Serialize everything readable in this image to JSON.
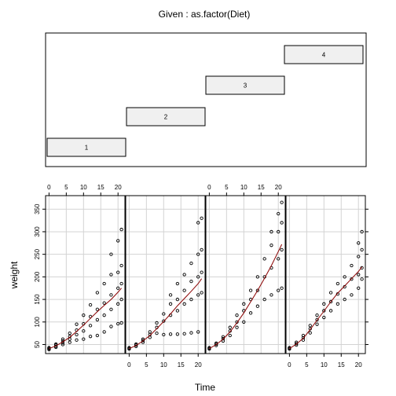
{
  "chart_data": {
    "type": "scatter",
    "subtype": "coplot",
    "given_title": "Given : as.factor(Diet)",
    "given_levels": [
      "1",
      "2",
      "3",
      "4"
    ],
    "xlabel": "Time",
    "ylabel": "weight",
    "xlim": [
      -1,
      22
    ],
    "ylim": [
      30,
      380
    ],
    "x_ticks": [
      0,
      5,
      10,
      15,
      20
    ],
    "y_ticks": [
      50,
      100,
      150,
      200,
      250,
      300,
      350
    ],
    "grid": true,
    "smoother": true,
    "smoother_color": "#8b0000",
    "point_color": "#000000",
    "x_times": [
      0,
      2,
      4,
      6,
      8,
      10,
      12,
      14,
      16,
      18,
      20,
      21
    ],
    "panels": [
      {
        "diet": "1",
        "smooth": [
          [
            0,
            41
          ],
          [
            2,
            47
          ],
          [
            4,
            56
          ],
          [
            6,
            66
          ],
          [
            8,
            79
          ],
          [
            10,
            93
          ],
          [
            12,
            108
          ],
          [
            14,
            123
          ],
          [
            16,
            137
          ],
          [
            18,
            150
          ],
          [
            20,
            166
          ],
          [
            21,
            175
          ]
        ],
        "points": [
          [
            0,
            39
          ],
          [
            0,
            41
          ],
          [
            0,
            42
          ],
          [
            0,
            43
          ],
          [
            2,
            44
          ],
          [
            2,
            46
          ],
          [
            2,
            49
          ],
          [
            2,
            51
          ],
          [
            4,
            50
          ],
          [
            4,
            54
          ],
          [
            4,
            58
          ],
          [
            4,
            62
          ],
          [
            6,
            55
          ],
          [
            6,
            62
          ],
          [
            6,
            68
          ],
          [
            6,
            75
          ],
          [
            8,
            60
          ],
          [
            8,
            72
          ],
          [
            8,
            82
          ],
          [
            8,
            95
          ],
          [
            10,
            62
          ],
          [
            10,
            80
          ],
          [
            10,
            96
          ],
          [
            10,
            115
          ],
          [
            12,
            68
          ],
          [
            12,
            92
          ],
          [
            12,
            112
          ],
          [
            12,
            138
          ],
          [
            14,
            70
          ],
          [
            14,
            105
          ],
          [
            14,
            128
          ],
          [
            14,
            165
          ],
          [
            16,
            78
          ],
          [
            16,
            115
          ],
          [
            16,
            142
          ],
          [
            16,
            185
          ],
          [
            18,
            90
          ],
          [
            18,
            128
          ],
          [
            18,
            160
          ],
          [
            18,
            205
          ],
          [
            18,
            250
          ],
          [
            20,
            96
          ],
          [
            20,
            140
          ],
          [
            20,
            175
          ],
          [
            20,
            210
          ],
          [
            20,
            280
          ],
          [
            21,
            98
          ],
          [
            21,
            150
          ],
          [
            21,
            185
          ],
          [
            21,
            225
          ],
          [
            21,
            305
          ]
        ]
      },
      {
        "diet": "2",
        "smooth": [
          [
            0,
            41
          ],
          [
            2,
            48
          ],
          [
            4,
            58
          ],
          [
            6,
            70
          ],
          [
            8,
            85
          ],
          [
            10,
            101
          ],
          [
            12,
            118
          ],
          [
            14,
            136
          ],
          [
            16,
            152
          ],
          [
            18,
            168
          ],
          [
            20,
            185
          ],
          [
            21,
            196
          ]
        ],
        "points": [
          [
            0,
            40
          ],
          [
            0,
            42
          ],
          [
            0,
            43
          ],
          [
            2,
            46
          ],
          [
            2,
            49
          ],
          [
            2,
            51
          ],
          [
            4,
            55
          ],
          [
            4,
            59
          ],
          [
            4,
            62
          ],
          [
            6,
            66
          ],
          [
            6,
            72
          ],
          [
            6,
            78
          ],
          [
            8,
            75
          ],
          [
            8,
            88
          ],
          [
            8,
            98
          ],
          [
            10,
            72
          ],
          [
            10,
            102
          ],
          [
            10,
            118
          ],
          [
            12,
            73
          ],
          [
            12,
            115
          ],
          [
            12,
            140
          ],
          [
            12,
            160
          ],
          [
            14,
            73
          ],
          [
            14,
            125
          ],
          [
            14,
            150
          ],
          [
            14,
            185
          ],
          [
            16,
            74
          ],
          [
            16,
            140
          ],
          [
            16,
            170
          ],
          [
            16,
            205
          ],
          [
            18,
            76
          ],
          [
            18,
            150
          ],
          [
            18,
            190
          ],
          [
            18,
            230
          ],
          [
            20,
            78
          ],
          [
            20,
            160
          ],
          [
            20,
            200
          ],
          [
            20,
            250
          ],
          [
            20,
            320
          ],
          [
            21,
            165
          ],
          [
            21,
            210
          ],
          [
            21,
            260
          ],
          [
            21,
            330
          ]
        ]
      },
      {
        "diet": "3",
        "smooth": [
          [
            0,
            41
          ],
          [
            2,
            50
          ],
          [
            4,
            62
          ],
          [
            6,
            78
          ],
          [
            8,
            98
          ],
          [
            10,
            120
          ],
          [
            12,
            145
          ],
          [
            14,
            170
          ],
          [
            16,
            197
          ],
          [
            18,
            225
          ],
          [
            20,
            256
          ],
          [
            21,
            272
          ]
        ],
        "points": [
          [
            0,
            40
          ],
          [
            0,
            42
          ],
          [
            0,
            43
          ],
          [
            2,
            48
          ],
          [
            2,
            51
          ],
          [
            2,
            53
          ],
          [
            4,
            58
          ],
          [
            4,
            63
          ],
          [
            4,
            67
          ],
          [
            6,
            70
          ],
          [
            6,
            80
          ],
          [
            6,
            88
          ],
          [
            8,
            88
          ],
          [
            8,
            100
          ],
          [
            8,
            115
          ],
          [
            10,
            100
          ],
          [
            10,
            125
          ],
          [
            10,
            140
          ],
          [
            12,
            120
          ],
          [
            12,
            150
          ],
          [
            12,
            170
          ],
          [
            14,
            135
          ],
          [
            14,
            170
          ],
          [
            14,
            200
          ],
          [
            16,
            150
          ],
          [
            16,
            200
          ],
          [
            16,
            240
          ],
          [
            18,
            160
          ],
          [
            18,
            220
          ],
          [
            18,
            270
          ],
          [
            18,
            300
          ],
          [
            20,
            170
          ],
          [
            20,
            240
          ],
          [
            20,
            300
          ],
          [
            20,
            340
          ],
          [
            21,
            175
          ],
          [
            21,
            260
          ],
          [
            21,
            320
          ],
          [
            21,
            365
          ]
        ]
      },
      {
        "diet": "4",
        "smooth": [
          [
            0,
            41
          ],
          [
            2,
            51
          ],
          [
            4,
            64
          ],
          [
            6,
            83
          ],
          [
            8,
            104
          ],
          [
            10,
            124
          ],
          [
            12,
            145
          ],
          [
            14,
            164
          ],
          [
            16,
            180
          ],
          [
            18,
            196
          ],
          [
            20,
            212
          ],
          [
            21,
            222
          ]
        ],
        "points": [
          [
            0,
            40
          ],
          [
            0,
            42
          ],
          [
            0,
            43
          ],
          [
            2,
            49
          ],
          [
            2,
            52
          ],
          [
            2,
            55
          ],
          [
            4,
            60
          ],
          [
            4,
            65
          ],
          [
            4,
            70
          ],
          [
            6,
            76
          ],
          [
            6,
            85
          ],
          [
            6,
            92
          ],
          [
            8,
            95
          ],
          [
            8,
            105
          ],
          [
            8,
            115
          ],
          [
            10,
            110
          ],
          [
            10,
            125
          ],
          [
            10,
            140
          ],
          [
            12,
            125
          ],
          [
            12,
            145
          ],
          [
            12,
            165
          ],
          [
            14,
            140
          ],
          [
            14,
            162
          ],
          [
            14,
            185
          ],
          [
            16,
            150
          ],
          [
            16,
            178
          ],
          [
            16,
            200
          ],
          [
            18,
            160
          ],
          [
            18,
            195
          ],
          [
            18,
            225
          ],
          [
            20,
            175
          ],
          [
            20,
            205
          ],
          [
            20,
            245
          ],
          [
            20,
            275
          ],
          [
            21,
            195
          ],
          [
            21,
            220
          ],
          [
            21,
            260
          ],
          [
            21,
            300
          ]
        ]
      }
    ]
  }
}
